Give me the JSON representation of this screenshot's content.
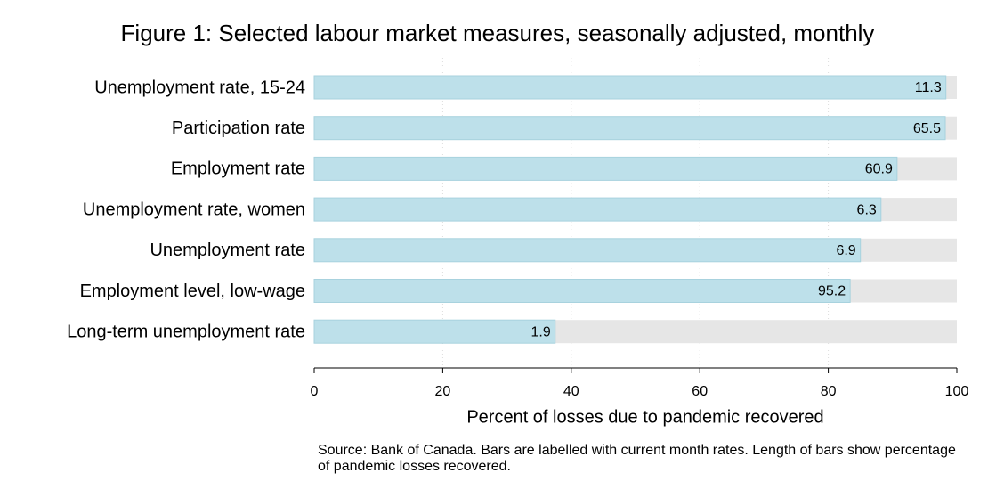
{
  "chart_data": {
    "type": "barh",
    "title": "Figure 1: Selected labour market measures, seasonally adjusted, monthly",
    "categories": [
      "Unemployment rate, 15-24",
      "Participation rate",
      "Employment rate",
      "Unemployment rate, women",
      "Unemployment rate",
      "Employment level, low-wage",
      "Long-term unemployment rate"
    ],
    "values": [
      98.3,
      98.2,
      90.7,
      88.2,
      85.0,
      83.4,
      37.5
    ],
    "rates": [
      11.3,
      65.5,
      60.9,
      6.3,
      6.9,
      95.2,
      1.9
    ],
    "color": "#bde0ea",
    "background_color": "#e6e6e6",
    "xlim": [
      0,
      100
    ],
    "xticks": [
      0,
      20,
      40,
      60,
      80,
      100
    ],
    "xlabel": "Percent of losses due to pandemic recovered",
    "grid": true,
    "note": "Source: Bank of Canada. Bars are labelled with current month rates. Length of bars show percentage of pandemic losses recovered."
  }
}
